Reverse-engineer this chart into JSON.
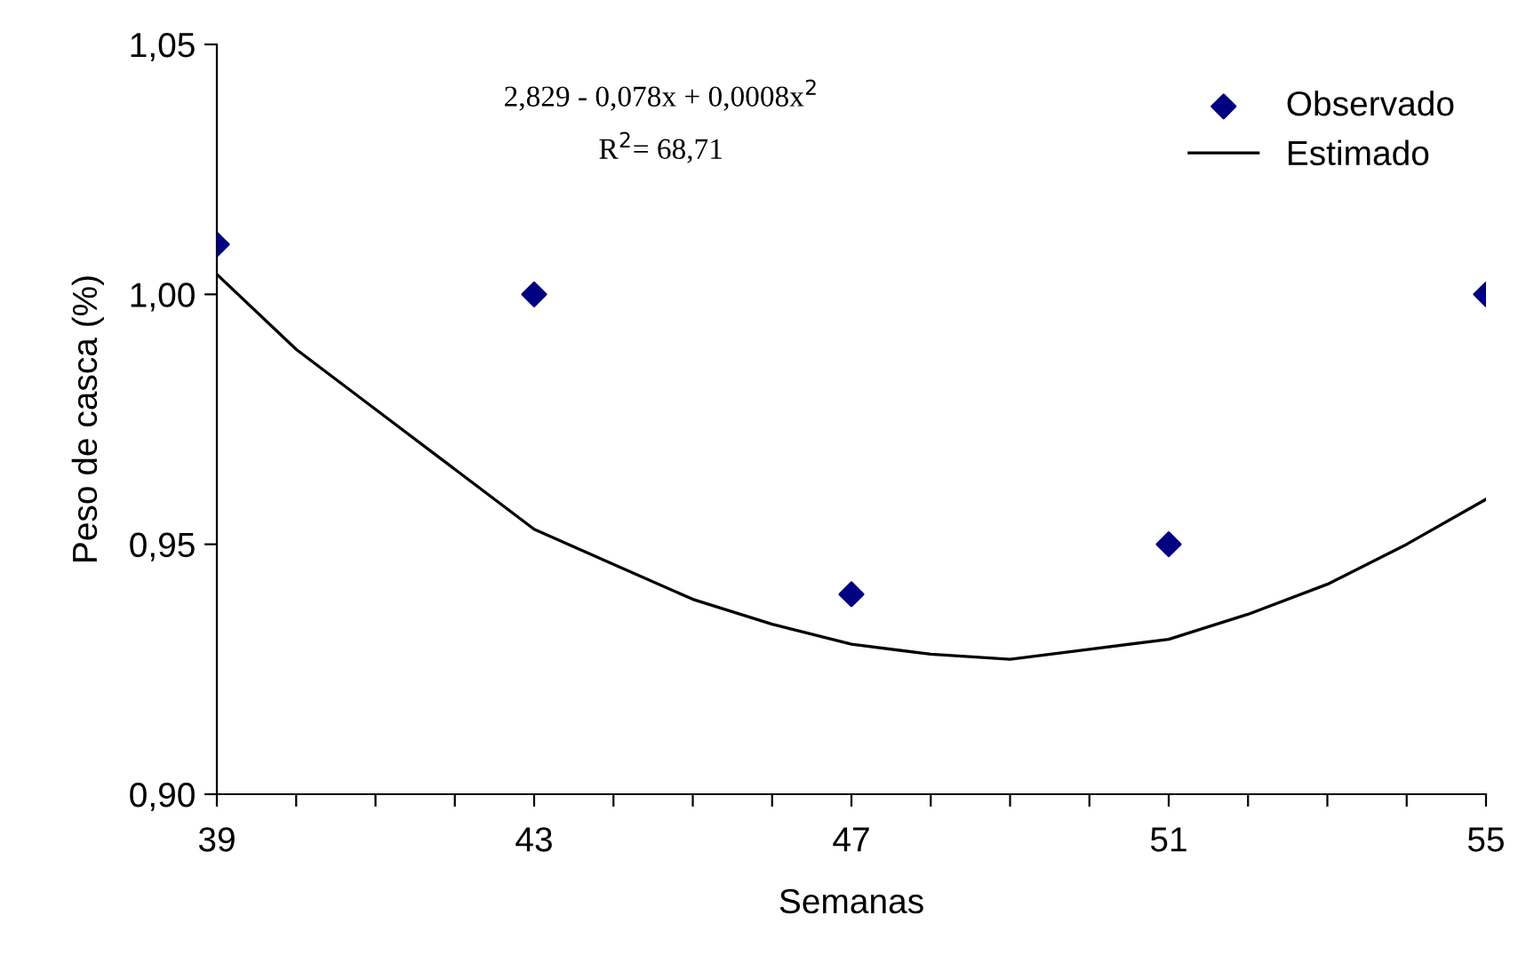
{
  "chart_data": {
    "type": "scatter",
    "xlabel": "Semanas",
    "ylabel": "Peso de casca (%)",
    "annotations": [
      "2,829 - 0,078x + 0,0008x$^{2}$",
      "R$^{2}$= 68,71"
    ],
    "series": [
      {
        "name": "Observado",
        "color": "#000080",
        "marker": "diamond",
        "x": [
          39,
          43,
          47,
          51,
          55
        ],
        "values": [
          1.01,
          1.0,
          0.94,
          0.95,
          1.0
        ]
      },
      {
        "name": "Estimado",
        "type": "line",
        "color": "#000000",
        "marker": "none",
        "line_style": "solid",
        "x": [
          39,
          40,
          41,
          42,
          43,
          44,
          45,
          46,
          47,
          48,
          49,
          50,
          51,
          52,
          53,
          54,
          55
        ],
        "values": [
          1.004,
          0.989,
          0.977,
          0.965,
          0.953,
          0.946,
          0.939,
          0.934,
          0.93,
          0.928,
          0.927,
          0.929,
          0.931,
          0.936,
          0.942,
          0.95,
          0.959
        ]
      }
    ],
    "xlim": [
      39,
      55
    ],
    "xticks": [
      39,
      {
        "value": 40,
        "label": null
      },
      {
        "value": 41,
        "label": null
      },
      {
        "value": 42,
        "label": null
      },
      43,
      {
        "value": 44,
        "label": null
      },
      {
        "value": 45,
        "label": null
      },
      {
        "value": 46,
        "label": null
      },
      47,
      {
        "value": 48,
        "label": null
      },
      {
        "value": 49,
        "label": null
      },
      {
        "value": 50,
        "label": null
      },
      51,
      {
        "value": 52,
        "label": null
      },
      {
        "value": 53,
        "label": null
      },
      {
        "value": 54,
        "label": null
      },
      55
    ],
    "ylim": [
      0.9,
      1.05
    ],
    "yticks": [
      {
        "value": 0.9,
        "label": "0,90"
      },
      {
        "value": 0.95,
        "label": "0,95"
      },
      {
        "value": 1.0,
        "label": "1,00"
      },
      {
        "value": 1.05,
        "label": "1,05"
      }
    ],
    "grid": false,
    "legend": "top right"
  }
}
